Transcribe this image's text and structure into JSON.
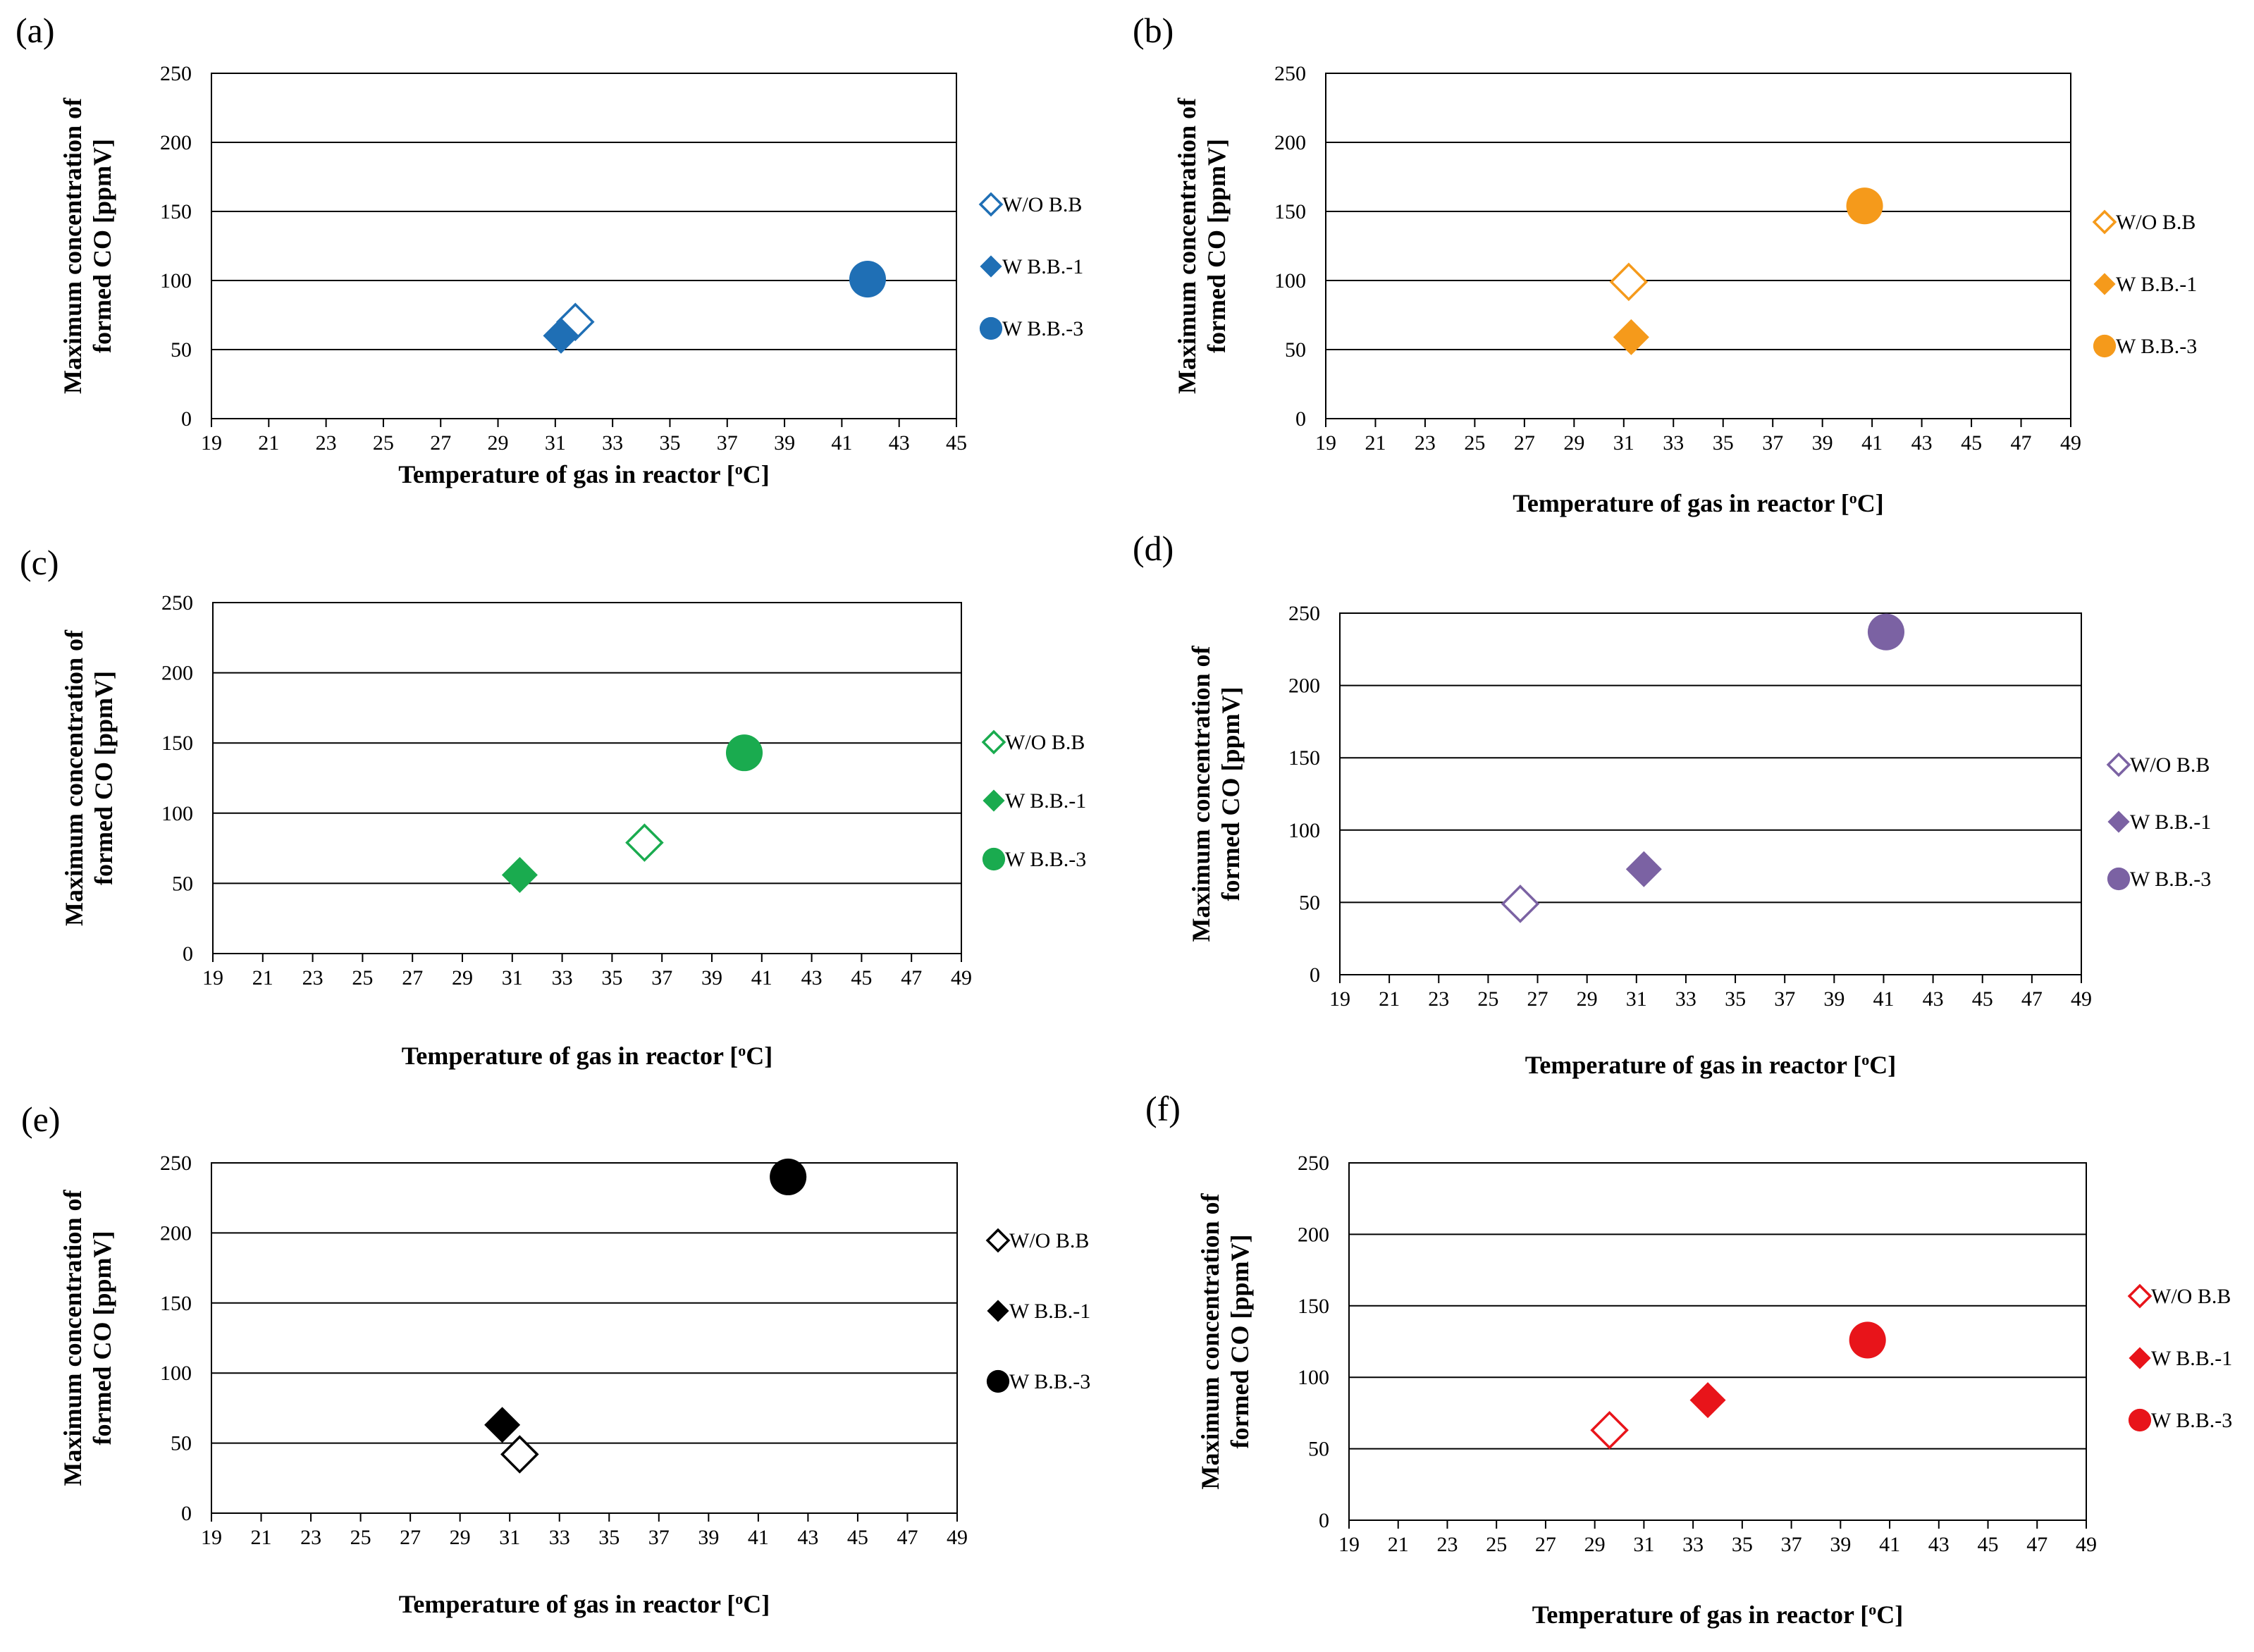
{
  "figure": {
    "panels": [
      {
        "label": "(a)",
        "color": "#1f6fb5",
        "chart_data": {
          "type": "scatter",
          "xlabel": "Temperature of gas in reactor [oC]",
          "ylabel_line1": "Maximum concentration of",
          "ylabel_line2": "formed CO [ppmV]",
          "xlim": [
            19,
            45
          ],
          "ylim": [
            0,
            250
          ],
          "xticks": [
            19,
            21,
            23,
            25,
            27,
            29,
            31,
            33,
            35,
            37,
            39,
            41,
            43,
            45
          ],
          "yticks": [
            0,
            50,
            100,
            150,
            200,
            250
          ],
          "series": [
            {
              "name": "W/O B.B",
              "marker": "diamond-open",
              "points": [
                {
                  "x": 31.7,
                  "y": 70
                }
              ]
            },
            {
              "name": "W B.B.-1",
              "marker": "diamond",
              "points": [
                {
                  "x": 31.2,
                  "y": 60
                }
              ]
            },
            {
              "name": "W B.B.-3",
              "marker": "circle",
              "points": [
                {
                  "x": 41.9,
                  "y": 101
                }
              ]
            }
          ]
        }
      },
      {
        "label": "(b)",
        "color": "#f59a1b",
        "chart_data": {
          "type": "scatter",
          "xlabel": "Temperature of gas in reactor [oC]",
          "ylabel_line1": "Maximum concentration of",
          "ylabel_line2": "formed CO [ppmV]",
          "xlim": [
            19,
            49
          ],
          "ylim": [
            0,
            250
          ],
          "xticks": [
            19,
            21,
            23,
            25,
            27,
            29,
            31,
            33,
            35,
            37,
            39,
            41,
            43,
            45,
            47,
            49
          ],
          "yticks": [
            0,
            50,
            100,
            150,
            200,
            250
          ],
          "series": [
            {
              "name": "W/O B.B",
              "marker": "diamond-open",
              "points": [
                {
                  "x": 31.2,
                  "y": 99
                }
              ]
            },
            {
              "name": "W B.B.-1",
              "marker": "diamond",
              "points": [
                {
                  "x": 31.3,
                  "y": 59
                }
              ]
            },
            {
              "name": "W B.B.-3",
              "marker": "circle",
              "points": [
                {
                  "x": 40.7,
                  "y": 154
                }
              ]
            }
          ]
        }
      },
      {
        "label": "(c)",
        "color": "#1aab4f",
        "chart_data": {
          "type": "scatter",
          "xlabel": "Temperature of gas in reactor [oC]",
          "ylabel_line1": "Maximum concentration of",
          "ylabel_line2": "formed CO [ppmV]",
          "xlim": [
            19,
            49
          ],
          "ylim": [
            0,
            250
          ],
          "xticks": [
            19,
            21,
            23,
            25,
            27,
            29,
            31,
            33,
            35,
            37,
            39,
            41,
            43,
            45,
            47,
            49
          ],
          "yticks": [
            0,
            50,
            100,
            150,
            200,
            250
          ],
          "series": [
            {
              "name": "W/O B.B",
              "marker": "diamond-open",
              "points": [
                {
                  "x": 36.3,
                  "y": 79
                }
              ]
            },
            {
              "name": "W B.B.-1",
              "marker": "diamond",
              "points": [
                {
                  "x": 31.3,
                  "y": 56
                }
              ]
            },
            {
              "name": "W B.B.-3",
              "marker": "circle",
              "points": [
                {
                  "x": 40.3,
                  "y": 143
                }
              ]
            }
          ]
        }
      },
      {
        "label": "(d)",
        "color": "#7b62a3",
        "chart_data": {
          "type": "scatter",
          "xlabel": "Temperature of gas in reactor [oC]",
          "ylabel_line1": "Maximum concentration of",
          "ylabel_line2": "formed CO [ppmV]",
          "xlim": [
            19,
            49
          ],
          "ylim": [
            0,
            250
          ],
          "xticks": [
            19,
            21,
            23,
            25,
            27,
            29,
            31,
            33,
            35,
            37,
            39,
            41,
            43,
            45,
            47,
            49
          ],
          "yticks": [
            0,
            50,
            100,
            150,
            200,
            250
          ],
          "series": [
            {
              "name": "W/O B.B",
              "marker": "diamond-open",
              "points": [
                {
                  "x": 26.3,
                  "y": 49
                }
              ]
            },
            {
              "name": "W B.B.-1",
              "marker": "diamond",
              "points": [
                {
                  "x": 31.3,
                  "y": 73
                }
              ]
            },
            {
              "name": "W B.B.-3",
              "marker": "circle",
              "points": [
                {
                  "x": 41.1,
                  "y": 237
                }
              ]
            }
          ]
        }
      },
      {
        "label": "(e)",
        "color": "#000000",
        "chart_data": {
          "type": "scatter",
          "xlabel": "Temperature of gas in reactor [oC]",
          "ylabel_line1": "Maximum concentration of",
          "ylabel_line2": "formed CO [ppmV]",
          "xlim": [
            19,
            49
          ],
          "ylim": [
            0,
            250
          ],
          "xticks": [
            19,
            21,
            23,
            25,
            27,
            29,
            31,
            33,
            35,
            37,
            39,
            41,
            43,
            45,
            47,
            49
          ],
          "yticks": [
            0,
            50,
            100,
            150,
            200,
            250
          ],
          "series": [
            {
              "name": "W/O B.B",
              "marker": "diamond-open",
              "points": [
                {
                  "x": 31.4,
                  "y": 42
                }
              ]
            },
            {
              "name": "W B.B.-1",
              "marker": "diamond",
              "points": [
                {
                  "x": 30.7,
                  "y": 63
                }
              ]
            },
            {
              "name": "W B.B.-3",
              "marker": "circle",
              "points": [
                {
                  "x": 42.2,
                  "y": 240
                }
              ]
            }
          ]
        }
      },
      {
        "label": "(f)",
        "color": "#e8141a",
        "chart_data": {
          "type": "scatter",
          "xlabel": "Temperature of gas in reactor [oC]",
          "ylabel_line1": "Maximum concentration of",
          "ylabel_line2": "formed CO [ppmV]",
          "xlim": [
            19,
            49
          ],
          "ylim": [
            0,
            250
          ],
          "xticks": [
            19,
            21,
            23,
            25,
            27,
            29,
            31,
            33,
            35,
            37,
            39,
            41,
            43,
            45,
            47,
            49
          ],
          "yticks": [
            0,
            50,
            100,
            150,
            200,
            250
          ],
          "series": [
            {
              "name": "W/O B.B",
              "marker": "diamond-open",
              "points": [
                {
                  "x": 29.6,
                  "y": 63
                }
              ]
            },
            {
              "name": "W B.B.-1",
              "marker": "diamond",
              "points": [
                {
                  "x": 33.6,
                  "y": 84
                }
              ]
            },
            {
              "name": "W B.B.-3",
              "marker": "circle",
              "points": [
                {
                  "x": 40.1,
                  "y": 126
                }
              ]
            }
          ]
        }
      }
    ]
  }
}
